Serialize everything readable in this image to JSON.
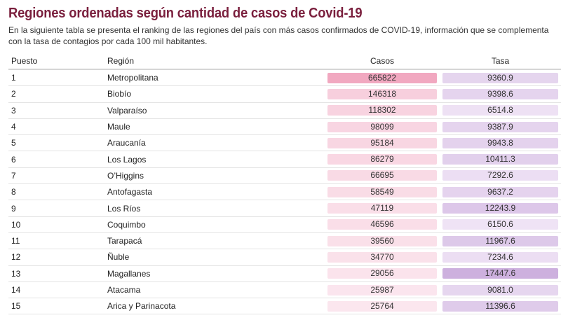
{
  "title": "Regiones ordenadas según cantidad de casos de Covid-19",
  "description": "En la siguiente tabla se presenta el ranking de las regiones del país con más casos confirmados de COVID-19, información que se complementa con la tasa de contagios por cada 100 mil habitantes.",
  "colors": {
    "title": "#7a1f3d",
    "casos_max": "#f1a8c0",
    "casos_min": "#fbe6ee",
    "tasa_max": "#cdb0de",
    "tasa_min": "#efe3f5"
  },
  "chart_data": {
    "type": "table",
    "columns": [
      "Puesto",
      "Región",
      "Casos",
      "Tasa"
    ],
    "rows": [
      {
        "puesto": "1",
        "region": "Metropolitana",
        "casos": 665822,
        "tasa": "9360.9"
      },
      {
        "puesto": "2",
        "region": "Biobío",
        "casos": 146318,
        "tasa": "9398.6"
      },
      {
        "puesto": "3",
        "region": "Valparaíso",
        "casos": 118302,
        "tasa": "6514.8"
      },
      {
        "puesto": "4",
        "region": "Maule",
        "casos": 98099,
        "tasa": "9387.9"
      },
      {
        "puesto": "5",
        "region": "Araucanía",
        "casos": 95184,
        "tasa": "9943.8"
      },
      {
        "puesto": "6",
        "region": "Los Lagos",
        "casos": 86279,
        "tasa": "10411.3"
      },
      {
        "puesto": "7",
        "region": "O’Higgins",
        "casos": 66695,
        "tasa": "7292.6"
      },
      {
        "puesto": "8",
        "region": "Antofagasta",
        "casos": 58549,
        "tasa": "9637.2"
      },
      {
        "puesto": "9",
        "region": "Los Ríos",
        "casos": 47119,
        "tasa": "12243.9"
      },
      {
        "puesto": "10",
        "region": "Coquimbo",
        "casos": 46596,
        "tasa": "6150.6"
      },
      {
        "puesto": "11",
        "region": "Tarapacá",
        "casos": 39560,
        "tasa": "11967.6"
      },
      {
        "puesto": "12",
        "region": "Ñuble",
        "casos": 34770,
        "tasa": "7234.6"
      },
      {
        "puesto": "13",
        "region": "Magallanes",
        "casos": 29056,
        "tasa": "17447.6"
      },
      {
        "puesto": "14",
        "region": "Atacama",
        "casos": 25987,
        "tasa": "9081.0"
      },
      {
        "puesto": "15",
        "region": "Arica y Parinacota",
        "casos": 25764,
        "tasa": "11396.6"
      }
    ]
  }
}
